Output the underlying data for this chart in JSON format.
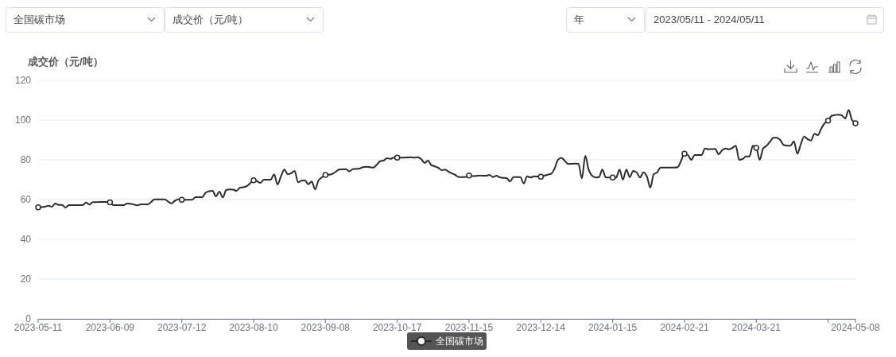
{
  "chart_data": {
    "type": "line",
    "ylabel": "成交价（元/吨）",
    "annotations": [
      "全国碳市场",
      "成交价（元/吨）",
      "年",
      "2023/05/11 - 2024/05/11"
    ],
    "categories": [
      "2023-05-11",
      null,
      null,
      null,
      null,
      null,
      null,
      null,
      null,
      null,
      null,
      null,
      null,
      null,
      null,
      null,
      null,
      null,
      null,
      null,
      null,
      "2023-06-09",
      null,
      null,
      null,
      null,
      null,
      null,
      null,
      null,
      null,
      null,
      null,
      null,
      null,
      null,
      null,
      null,
      null,
      null,
      null,
      null,
      "2023-07-12",
      null,
      null,
      null,
      null,
      null,
      null,
      null,
      null,
      null,
      null,
      null,
      null,
      null,
      null,
      null,
      null,
      null,
      null,
      null,
      null,
      "2023-08-10",
      null,
      null,
      null,
      null,
      null,
      null,
      null,
      null,
      null,
      null,
      null,
      null,
      null,
      null,
      null,
      null,
      null,
      null,
      null,
      null,
      "2023-09-08",
      null,
      null,
      null,
      null,
      null,
      null,
      null,
      null,
      null,
      null,
      null,
      null,
      null,
      null,
      null,
      null,
      null,
      null,
      null,
      null,
      "2023-10-17",
      null,
      null,
      null,
      null,
      null,
      null,
      null,
      null,
      null,
      null,
      null,
      null,
      null,
      null,
      null,
      null,
      null,
      null,
      null,
      null,
      "2023-11-15",
      null,
      null,
      null,
      null,
      null,
      null,
      null,
      null,
      null,
      null,
      null,
      null,
      null,
      null,
      null,
      null,
      null,
      null,
      null,
      null,
      "2023-12-14",
      null,
      null,
      null,
      null,
      null,
      null,
      null,
      null,
      null,
      null,
      null,
      null,
      null,
      null,
      null,
      null,
      null,
      null,
      null,
      null,
      "2024-01-15",
      null,
      null,
      null,
      null,
      null,
      null,
      null,
      null,
      null,
      null,
      null,
      null,
      null,
      null,
      null,
      null,
      null,
      null,
      null,
      null,
      "2024-02-21",
      null,
      null,
      null,
      null,
      null,
      null,
      null,
      null,
      null,
      null,
      null,
      null,
      null,
      null,
      null,
      null,
      null,
      null,
      null,
      null,
      "2024-03-21",
      null,
      null,
      null,
      null,
      null,
      null,
      null,
      null,
      null,
      null,
      null,
      null,
      null,
      null,
      null,
      null,
      null,
      null,
      null,
      null,
      null,
      null,
      null,
      null,
      null,
      null,
      null,
      null,
      "2024-05-08"
    ],
    "series": [
      {
        "name": "全国碳市场",
        "color": "#2b2b2b",
        "marker": "none",
        "values": [
          56.1,
          56.2,
          56.4,
          56.9,
          56.4,
          58.0,
          57.3,
          57.3,
          56.0,
          57.2,
          57.2,
          57.2,
          57.2,
          57.2,
          58.5,
          57.5,
          58.7,
          58.7,
          58.8,
          58.8,
          58.8,
          58.6,
          57.2,
          57.2,
          57.2,
          57.2,
          58.0,
          57.9,
          57.5,
          57.1,
          57.6,
          57.6,
          57.6,
          58.7,
          60.1,
          60.1,
          60.1,
          60.1,
          59.0,
          58.1,
          59.4,
          60.1,
          59.9,
          59.9,
          59.9,
          59.9,
          61.2,
          61.2,
          61.2,
          63.5,
          64.2,
          64.4,
          61.6,
          64.0,
          61.1,
          64.8,
          65.1,
          65.0,
          64.4,
          66.0,
          66.2,
          66.8,
          68.2,
          69.7,
          69.2,
          68.4,
          70.0,
          70.0,
          70.0,
          72.7,
          67.6,
          71.7,
          75.1,
          72.7,
          73.3,
          74.4,
          68.7,
          69.5,
          69.7,
          67.7,
          69.1,
          65.1,
          69.7,
          71.3,
          72.4,
          72.5,
          72.9,
          74.0,
          75.1,
          75.2,
          75.3,
          74.2,
          75.3,
          75.4,
          75.6,
          76.3,
          76.5,
          76.3,
          76.1,
          77.5,
          79.3,
          79.6,
          80.8,
          80.5,
          81.1,
          81.1,
          81.1,
          81.1,
          81.2,
          81.3,
          81.1,
          81.3,
          80.4,
          78.4,
          79.6,
          77.3,
          76.7,
          76.0,
          74.8,
          75.1,
          74.0,
          73.2,
          72.4,
          71.3,
          71.3,
          71.4,
          72.1,
          71.8,
          71.9,
          72.1,
          72.0,
          72.0,
          72.4,
          71.3,
          72.0,
          71.2,
          70.9,
          70.8,
          69.1,
          71.3,
          71.3,
          71.3,
          68.1,
          71.7,
          71.1,
          71.7,
          71.6,
          71.5,
          72.0,
          72.5,
          73.0,
          75.5,
          80.0,
          81.0,
          79.5,
          77.9,
          78.0,
          78.1,
          78.0,
          70.7,
          82.0,
          75.0,
          72.0,
          71.1,
          71.3,
          75.1,
          71.1,
          71.1,
          71.1,
          71.0,
          75.1,
          70.0,
          75.1,
          71.3,
          74.4,
          73.7,
          71.1,
          73.7,
          71.7,
          66.0,
          72.7,
          73.7,
          76.1,
          76.1,
          76.1,
          76.1,
          76.1,
          76.3,
          79.5,
          83.1,
          82.4,
          80.0,
          82.4,
          82.4,
          82.4,
          85.7,
          85.3,
          85.4,
          85.5,
          82.8,
          84.8,
          85.7,
          85.3,
          86.0,
          87.1,
          80.0,
          80.4,
          81.7,
          81.7,
          87.1,
          86.0,
          80.0,
          85.7,
          87.1,
          89.1,
          91.1,
          91.1,
          90.0,
          87.5,
          87.1,
          87.1,
          89.3,
          83.1,
          87.7,
          91.7,
          90.4,
          89.7,
          93.1,
          92.4,
          95.7,
          98.4,
          99.7,
          102.1,
          102.5,
          102.7,
          102.4,
          100.8,
          105.1,
          100.0,
          98.4
        ]
      },
      {
        "type": "scatter",
        "color": "#2b2b2b",
        "marker": "circle",
        "values": [
          56.1,
          null,
          null,
          null,
          null,
          null,
          null,
          null,
          null,
          null,
          null,
          null,
          null,
          null,
          null,
          null,
          null,
          null,
          null,
          null,
          null,
          58.6,
          null,
          null,
          null,
          null,
          null,
          null,
          null,
          null,
          null,
          null,
          null,
          null,
          null,
          null,
          null,
          null,
          null,
          null,
          null,
          null,
          59.9,
          null,
          null,
          null,
          null,
          null,
          null,
          null,
          null,
          null,
          null,
          null,
          null,
          null,
          null,
          null,
          null,
          null,
          null,
          null,
          null,
          69.7,
          null,
          null,
          null,
          null,
          null,
          null,
          null,
          null,
          null,
          null,
          null,
          null,
          null,
          null,
          null,
          null,
          null,
          null,
          null,
          null,
          72.4,
          null,
          null,
          null,
          null,
          null,
          null,
          null,
          null,
          null,
          null,
          null,
          null,
          null,
          null,
          null,
          null,
          null,
          null,
          null,
          null,
          81.1,
          null,
          null,
          null,
          null,
          null,
          null,
          null,
          null,
          null,
          null,
          null,
          null,
          null,
          null,
          null,
          null,
          null,
          null,
          null,
          null,
          72.1,
          null,
          null,
          null,
          null,
          null,
          null,
          null,
          null,
          null,
          null,
          null,
          null,
          null,
          null,
          null,
          null,
          null,
          null,
          null,
          null,
          71.5,
          null,
          null,
          null,
          null,
          null,
          null,
          null,
          null,
          null,
          null,
          null,
          null,
          null,
          null,
          null,
          null,
          null,
          null,
          null,
          null,
          71.1,
          null,
          null,
          null,
          null,
          null,
          null,
          null,
          null,
          null,
          null,
          null,
          null,
          null,
          null,
          null,
          null,
          null,
          null,
          null,
          null,
          83.1,
          null,
          null,
          null,
          null,
          null,
          null,
          null,
          null,
          null,
          null,
          null,
          null,
          null,
          null,
          null,
          null,
          null,
          null,
          null,
          null,
          86.0,
          null,
          null,
          null,
          null,
          null,
          null,
          null,
          null,
          null,
          null,
          null,
          null,
          null,
          null,
          null,
          null,
          null,
          null,
          null,
          null,
          99.7,
          null,
          null,
          null,
          null,
          null,
          null,
          null,
          98.4
        ]
      }
    ],
    "ylim": [
      0,
      120
    ],
    "yticks": [
      0,
      20,
      40,
      60,
      80,
      100,
      120
    ],
    "grid": "y",
    "legend": "bottom",
    "line_style": "solid"
  }
}
